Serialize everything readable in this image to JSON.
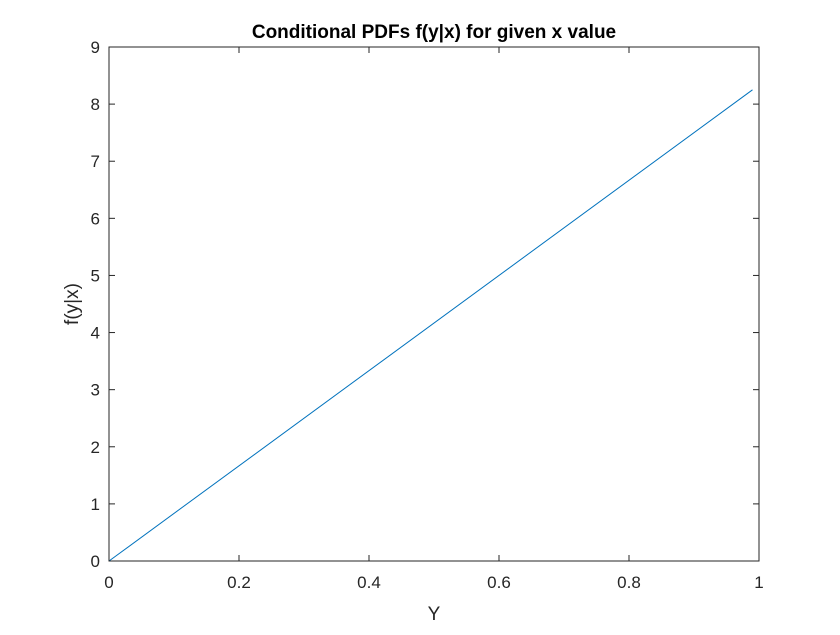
{
  "chart_data": {
    "type": "line",
    "title": "Conditional PDFs f(y|x) for given x value",
    "xlabel": "Y",
    "ylabel": "f(y|x)",
    "xlim": [
      0,
      1
    ],
    "ylim": [
      0,
      9
    ],
    "xticks": [
      0,
      0.2,
      0.4,
      0.6,
      0.8,
      1
    ],
    "xtick_labels": [
      "0",
      "0.2",
      "0.4",
      "0.6",
      "0.8",
      "1"
    ],
    "yticks": [
      0,
      1,
      2,
      3,
      4,
      5,
      6,
      7,
      8,
      9
    ],
    "ytick_labels": [
      "0",
      "1",
      "2",
      "3",
      "4",
      "5",
      "6",
      "7",
      "8",
      "9"
    ],
    "grid": false,
    "series": [
      {
        "color": "#0072BD",
        "x": [
          0,
          0.99
        ],
        "y": [
          0,
          8.25
        ]
      }
    ]
  }
}
